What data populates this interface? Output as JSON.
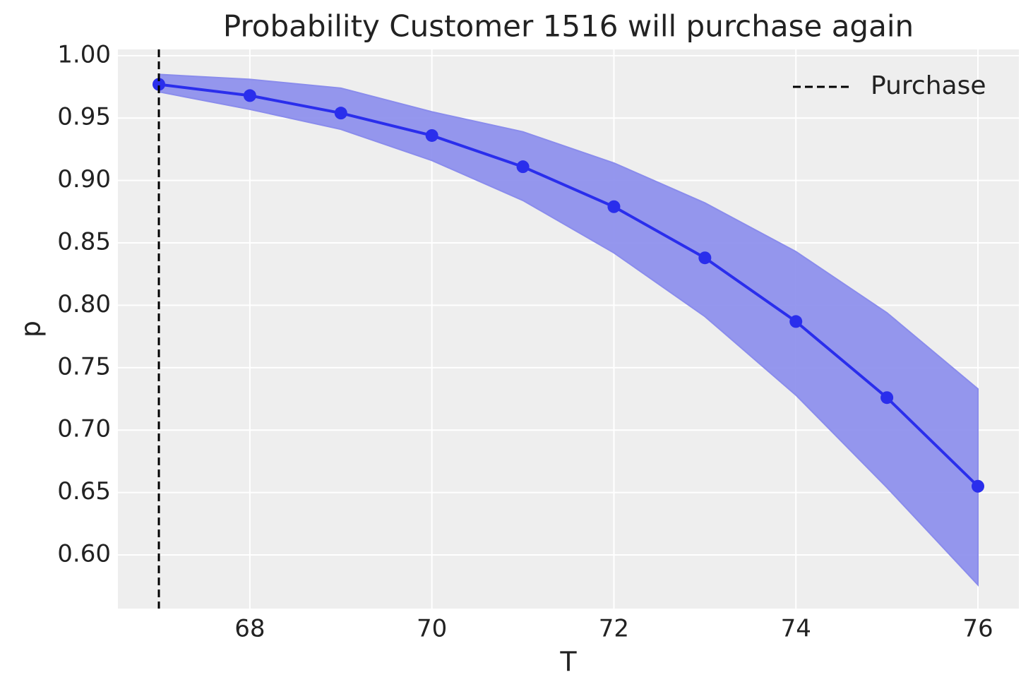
{
  "chart_data": {
    "type": "line",
    "title": "Probability Customer 1516 will purchase again",
    "xlabel": "T",
    "ylabel": "p",
    "x": [
      67,
      68,
      69,
      70,
      71,
      72,
      73,
      74,
      75,
      76
    ],
    "series": [
      {
        "color": "#2a2eec",
        "values": [
          0.977,
          0.968,
          0.954,
          0.936,
          0.911,
          0.879,
          0.838,
          0.787,
          0.726,
          0.655
        ]
      }
    ],
    "band": {
      "color": "#8a8cec",
      "upper": [
        0.985,
        0.981,
        0.974,
        0.955,
        0.939,
        0.914,
        0.882,
        0.843,
        0.794,
        0.733
      ],
      "lower": [
        0.971,
        0.957,
        0.941,
        0.916,
        0.884,
        0.842,
        0.791,
        0.728,
        0.654,
        0.576
      ]
    },
    "vline": {
      "x": 67,
      "label": "Purchase",
      "color": "#000000"
    },
    "xlim": [
      66.55,
      76.45
    ],
    "ylim": [
      0.557,
      1.005
    ],
    "xticks": [
      68,
      70,
      72,
      74,
      76
    ],
    "yticks": [
      {
        "value": 0.6,
        "label": "0.60"
      },
      {
        "value": 0.65,
        "label": "0.65"
      },
      {
        "value": 0.7,
        "label": "0.70"
      },
      {
        "value": 0.75,
        "label": "0.75"
      },
      {
        "value": 0.8,
        "label": "0.80"
      },
      {
        "value": 0.85,
        "label": "0.85"
      },
      {
        "value": 0.9,
        "label": "0.90"
      },
      {
        "value": 0.95,
        "label": "0.95"
      },
      {
        "value": 1.0,
        "label": "1.00"
      }
    ],
    "grid": true,
    "legend": "upper right"
  }
}
